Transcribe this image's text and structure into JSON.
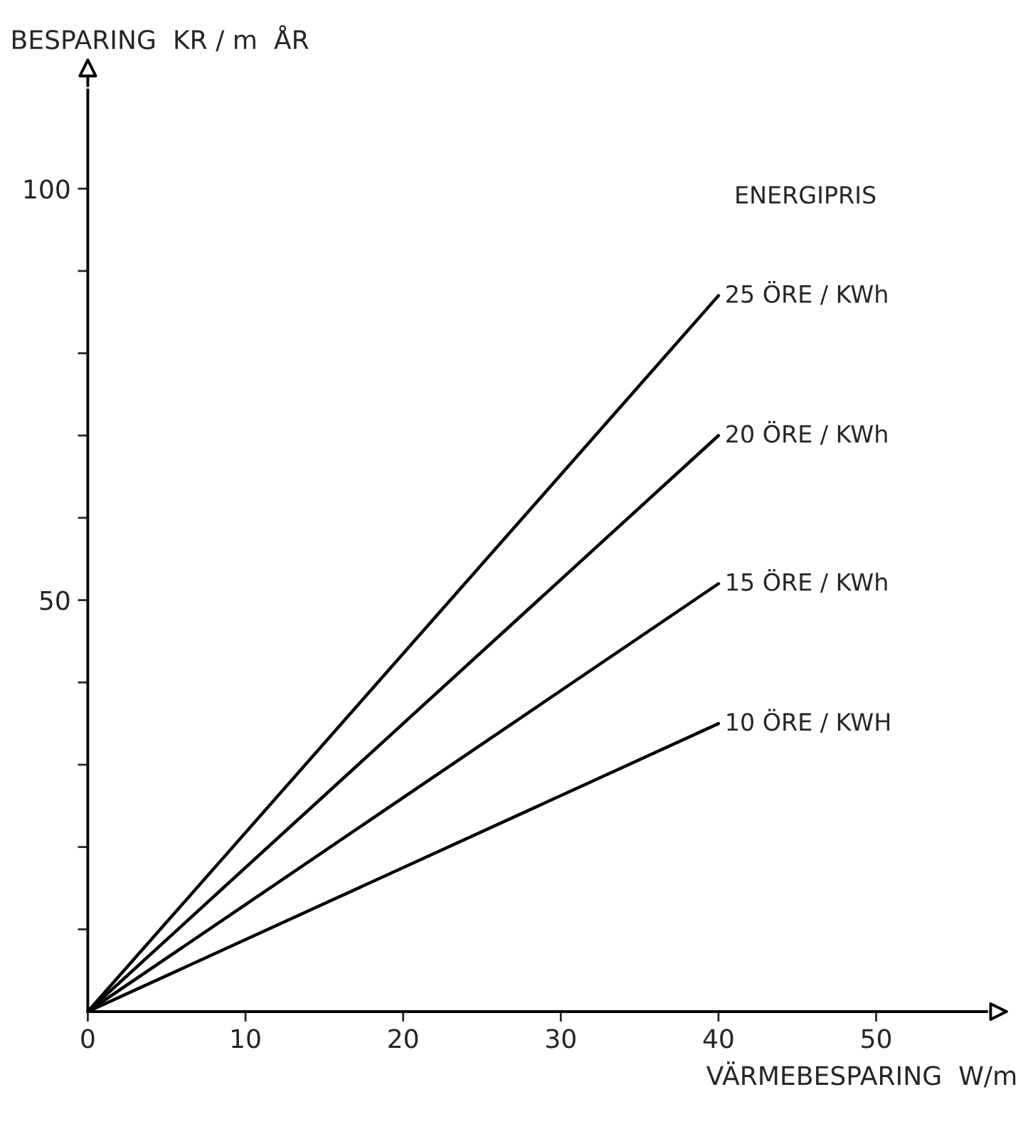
{
  "chart_data": {
    "type": "line",
    "xlabel": "VÄRMEBESPARING  W/m",
    "ylabel": "BESPARING  KR / m  ÅR",
    "legend_title": "ENERGIPRIS",
    "x": [
      0,
      40
    ],
    "series": [
      {
        "name": "25 ÖRE / KWh",
        "color": "#000000",
        "values": [
          0,
          87
        ]
      },
      {
        "name": "20 ÖRE / KWh",
        "color": "#000000",
        "values": [
          0,
          70
        ]
      },
      {
        "name": "15 ÖRE / KWh",
        "color": "#000000",
        "values": [
          0,
          52
        ]
      },
      {
        "name": "10 ÖRE / KWH",
        "color": "#000000",
        "values": [
          0,
          35
        ]
      }
    ],
    "xlim": [
      0,
      57
    ],
    "ylim": [
      0,
      112
    ],
    "xticks": [
      0,
      10,
      20,
      30,
      40,
      50
    ],
    "yticks": [
      {
        "value": 10,
        "label": null
      },
      {
        "value": 20,
        "label": null
      },
      {
        "value": 30,
        "label": null
      },
      {
        "value": 40,
        "label": null
      },
      50,
      {
        "value": 60,
        "label": null
      },
      {
        "value": 70,
        "label": null
      },
      {
        "value": 80,
        "label": null
      },
      {
        "value": 90,
        "label": null
      },
      100
    ],
    "grid": false,
    "legend": false,
    "marker": "none",
    "line_style": "solid"
  }
}
